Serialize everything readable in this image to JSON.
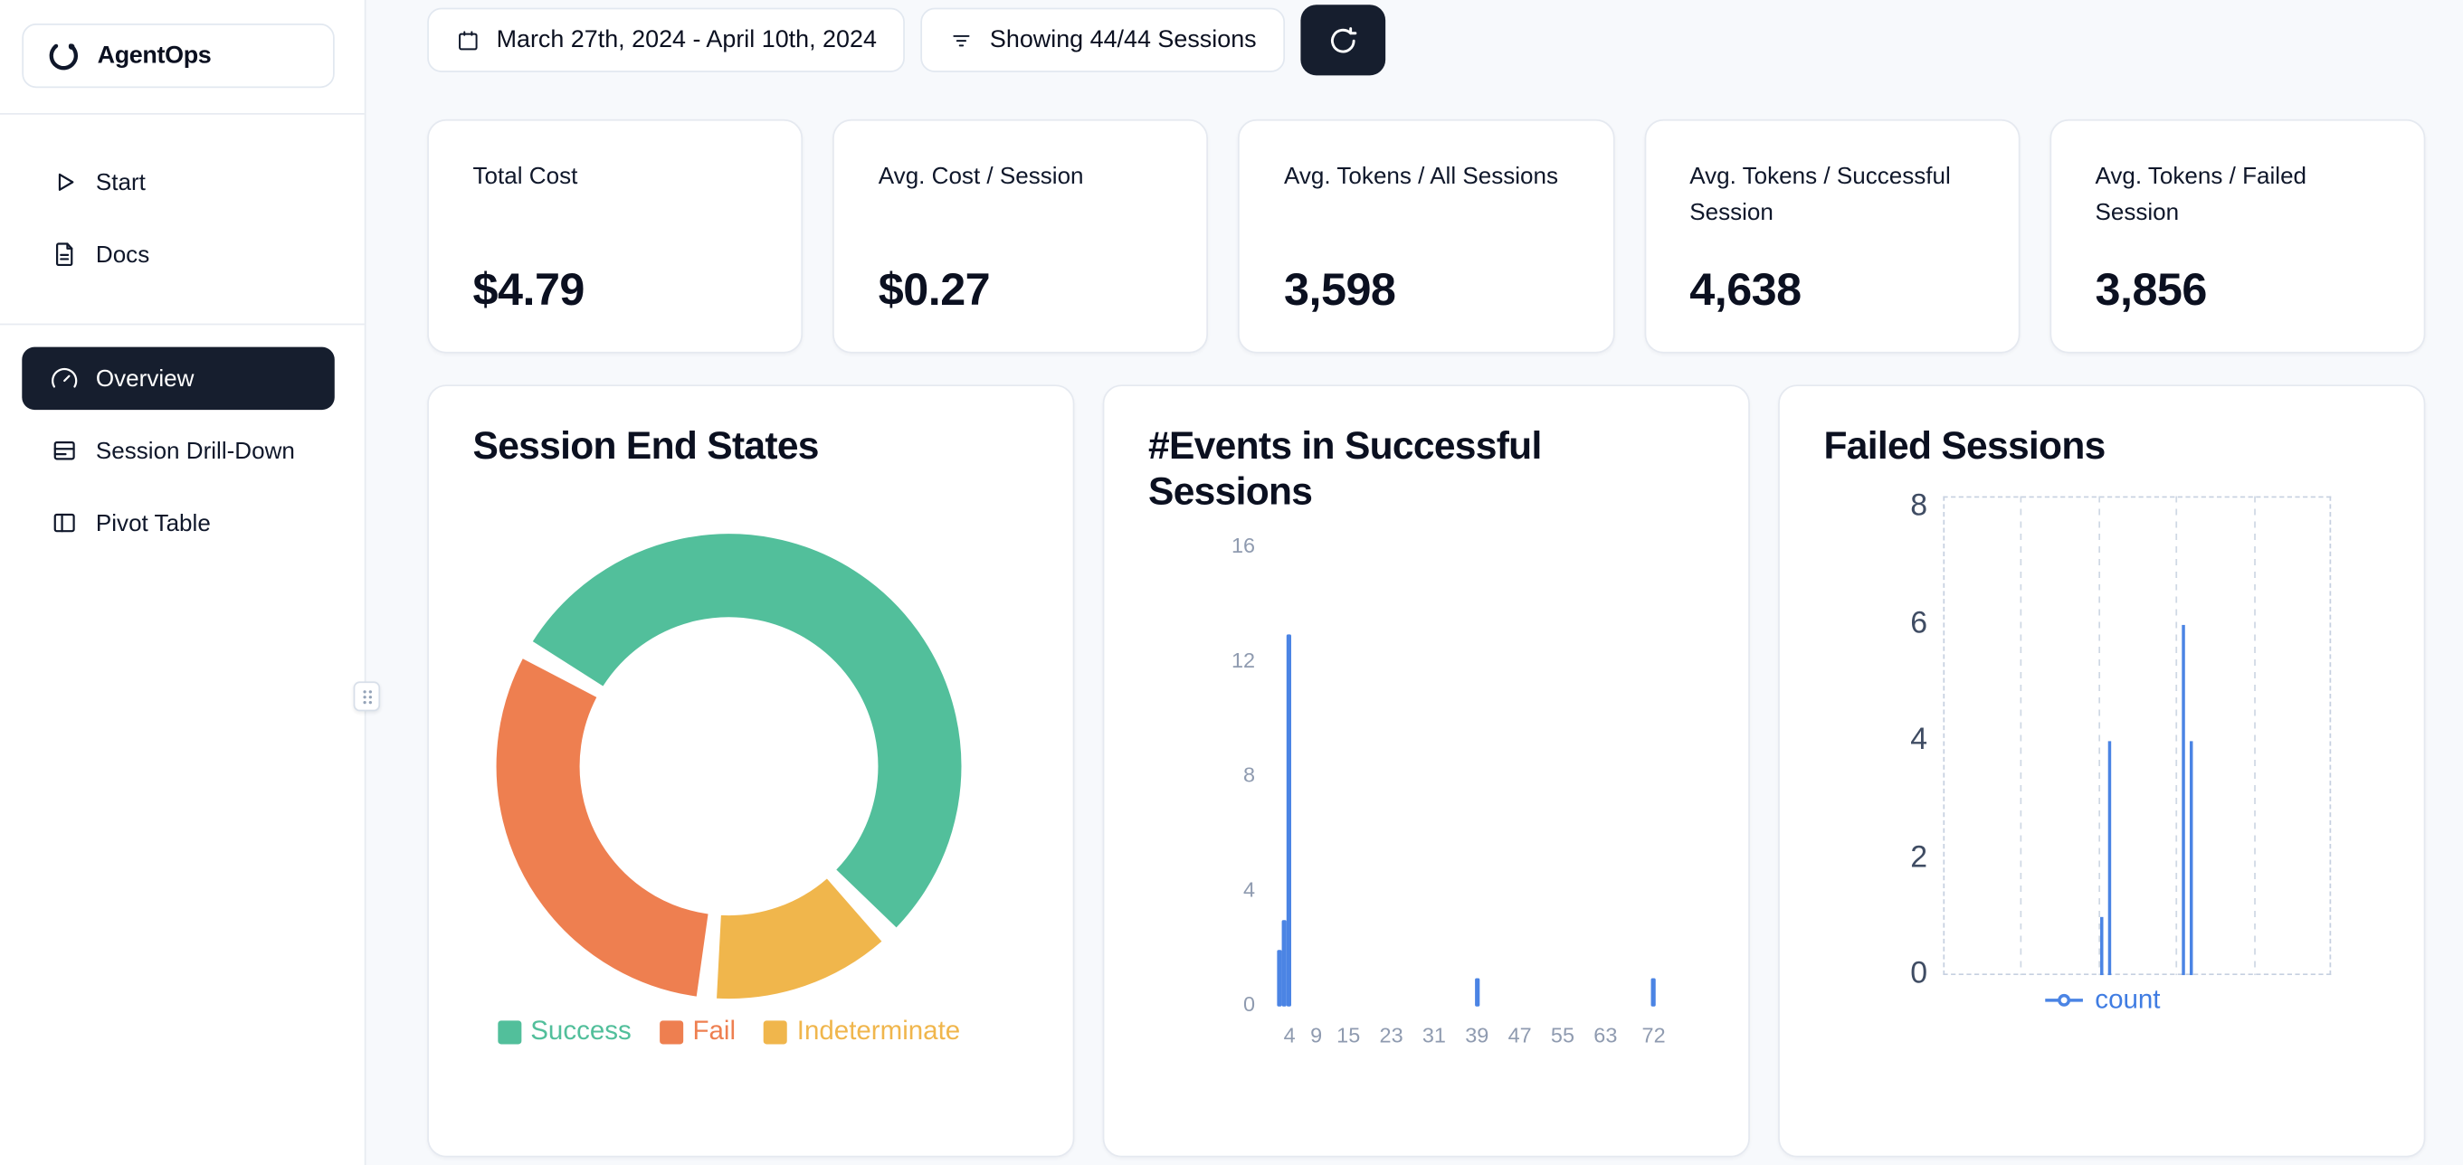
{
  "app": {
    "name": "AgentOps"
  },
  "colors": {
    "background": "#f7f9fc",
    "surface": "#ffffff",
    "border": "#e5e9f0",
    "dark_navy": "#161e2e",
    "text": "#0f172a",
    "muted_text": "#8f9bb0",
    "success_green": "#52bf9b",
    "fail_orange": "#ee7f50",
    "indeterminate_yellow": "#f0b64c",
    "chart_blue": "#4b84e4"
  },
  "icons": {
    "logo": "agentops-logo-icon",
    "start": "play-icon",
    "docs": "file-text-icon",
    "overview": "gauge-icon",
    "session_drilldown": "rows-icon",
    "pivot_table": "panel-left-icon",
    "date": "calendar-icon",
    "filter": "filter-lines-icon",
    "refresh": "refresh-icon",
    "resize_handle": "grip-dots-icon",
    "count_marker": "line-dot-marker-icon"
  },
  "sidebar": {
    "items": [
      {
        "label": "Start",
        "active": false
      },
      {
        "label": "Docs",
        "active": false
      },
      {
        "label": "Overview",
        "active": true
      },
      {
        "label": "Session Drill-Down",
        "active": false
      },
      {
        "label": "Pivot Table",
        "active": false
      }
    ]
  },
  "topbar": {
    "date_range": "March 27th, 2024 - April 10th, 2024",
    "sessions_filter": "Showing 44/44 Sessions"
  },
  "stats": [
    {
      "label": "Total Cost",
      "value": "$4.79"
    },
    {
      "label": "Avg. Cost / Session",
      "value": "$0.27"
    },
    {
      "label": "Avg. Tokens / All Sessions",
      "value": "3,598"
    },
    {
      "label": "Avg. Tokens / Successful Session",
      "value": "4,638"
    },
    {
      "label": "Avg. Tokens / Failed Session",
      "value": "3,856"
    }
  ],
  "chart_data": [
    {
      "type": "pie",
      "title": "Session End States",
      "donut": true,
      "start_angle_deg": 300,
      "pad_angle_deg": 5,
      "segments": [
        {
          "label": "Success",
          "value": 24,
          "color": "#52bf9b"
        },
        {
          "label": "Indeterminate",
          "value": 6,
          "color": "#f0b64c"
        },
        {
          "label": "Fail",
          "value": 14,
          "color": "#ee7f50"
        }
      ],
      "legend": [
        "Success",
        "Fail",
        "Indeterminate"
      ],
      "legend_position": "bottom",
      "values_estimated": true
    },
    {
      "type": "bar",
      "title": "#Events in Successful Sessions",
      "bars": [
        {
          "x": 2,
          "count": 2
        },
        {
          "x": 3,
          "count": 3
        },
        {
          "x": 4,
          "count": 13
        },
        {
          "x": 39,
          "count": 1
        },
        {
          "x": 72,
          "count": 1
        }
      ],
      "xticks": [
        4,
        9,
        15,
        23,
        31,
        39,
        47,
        55,
        63,
        72
      ],
      "yticks": [
        0,
        4,
        8,
        12,
        16
      ],
      "ylim": [
        0,
        16
      ],
      "xlim": [
        0.5,
        75
      ],
      "bar_color": "#4b84e4",
      "grid": false,
      "values_estimated": true
    },
    {
      "type": "line",
      "title": "Failed Sessions",
      "ylim": [
        0,
        8
      ],
      "yticks": [
        0,
        2,
        4,
        6,
        8
      ],
      "grid": "vertical-dashed",
      "series": [
        {
          "name": "count",
          "color": "#4b84e4",
          "points": [
            {
              "x_frac": 0.409,
              "count": 1
            },
            {
              "x_frac": 0.429,
              "count": 4
            },
            {
              "x_frac": 0.619,
              "count": 6
            },
            {
              "x_frac": 0.64,
              "count": 4
            }
          ]
        }
      ],
      "legend_position": "bottom",
      "values_estimated": true
    }
  ]
}
